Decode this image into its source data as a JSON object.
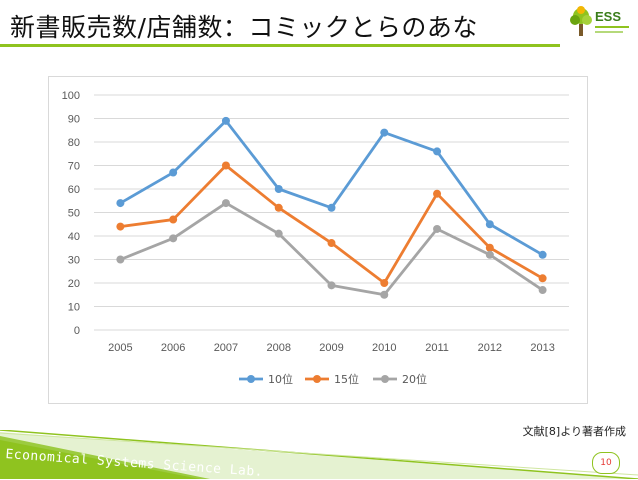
{
  "slide": {
    "title": "新書販売数/店舗数：コミックとらのあな",
    "source": "文献[8]より著者作成",
    "footer_lab": "Economical Systems Science Lab.",
    "page_number": "10",
    "logo_text": "ESS"
  },
  "colors": {
    "accent_green": "#8fc31f",
    "series_10": "#5b9bd5",
    "series_15": "#ed7d31",
    "series_20": "#a5a5a5"
  },
  "chart_data": {
    "type": "line",
    "title": "",
    "xlabel": "",
    "ylabel": "",
    "ylim": [
      0,
      100
    ],
    "yticks": [
      "0",
      "10",
      "20",
      "30",
      "40",
      "50",
      "60",
      "70",
      "80",
      "90",
      "100"
    ],
    "grid": true,
    "legend": "bottom",
    "categories": [
      "2005",
      "2006",
      "2007",
      "2008",
      "2009",
      "2010",
      "2011",
      "2012",
      "2013"
    ],
    "series": [
      {
        "name": "10位",
        "color": "#5b9bd5",
        "values": [
          54,
          67,
          89,
          60,
          52,
          84,
          76,
          45,
          32
        ]
      },
      {
        "name": "15位",
        "color": "#ed7d31",
        "values": [
          44,
          47,
          70,
          52,
          37,
          20,
          58,
          35,
          22
        ]
      },
      {
        "name": "20位",
        "color": "#a5a5a5",
        "values": [
          30,
          39,
          54,
          41,
          19,
          15,
          43,
          32,
          17
        ]
      }
    ]
  }
}
